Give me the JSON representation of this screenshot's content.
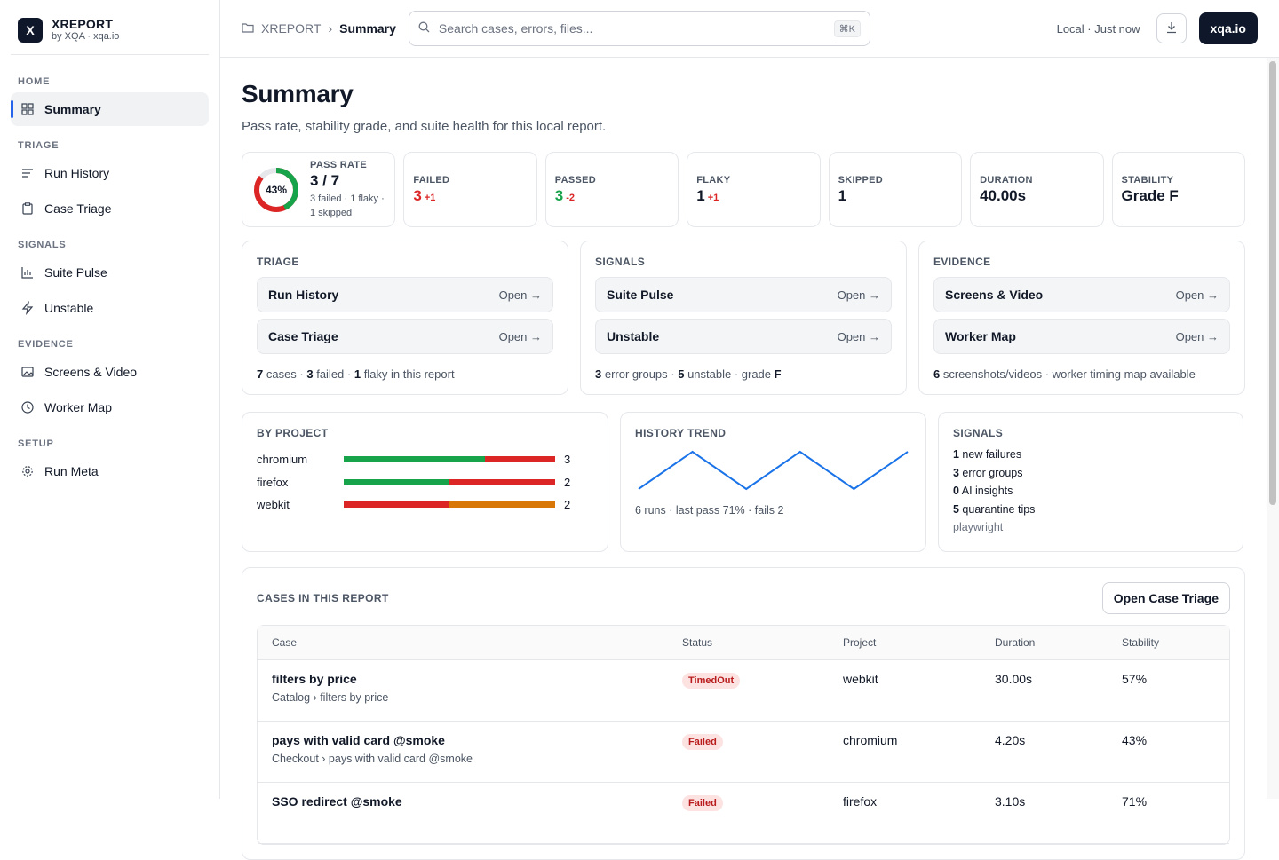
{
  "brand": {
    "logo_letter": "X",
    "name": "XREPORT",
    "sub": "by XQA · xqa.io"
  },
  "sidebar": {
    "sections": [
      {
        "title": "HOME",
        "items": [
          {
            "label": "Summary",
            "icon": "grid-icon",
            "active": true
          }
        ]
      },
      {
        "title": "TRIAGE",
        "items": [
          {
            "label": "Run History",
            "icon": "list-icon"
          },
          {
            "label": "Case Triage",
            "icon": "clipboard-icon"
          }
        ]
      },
      {
        "title": "SIGNALS",
        "items": [
          {
            "label": "Suite Pulse",
            "icon": "bar-chart-icon"
          },
          {
            "label": "Unstable",
            "icon": "lightning-icon"
          }
        ]
      },
      {
        "title": "EVIDENCE",
        "items": [
          {
            "label": "Screens & Video",
            "icon": "image-icon"
          },
          {
            "label": "Worker Map",
            "icon": "clock-icon"
          }
        ]
      },
      {
        "title": "SETUP",
        "items": [
          {
            "label": "Run Meta",
            "icon": "settings-icon"
          }
        ]
      }
    ]
  },
  "topbar": {
    "crumb_root": "XREPORT",
    "crumb_sep": "›",
    "crumb_current": "Summary",
    "search_placeholder": "Search cases, errors, files...",
    "search_shortcut": "⌘K",
    "status": "Local · Just now",
    "brand_button": "xqa.io"
  },
  "page": {
    "title": "Summary",
    "subtitle": "Pass rate, stability grade, and suite health for this local report."
  },
  "stats": {
    "pass_rate": {
      "label": "PASS RATE",
      "percent_text": "43%",
      "percent": 43,
      "value": "3 / 7",
      "detail": "3 failed · 1 flaky · 1 skipped"
    },
    "cards": [
      {
        "label": "FAILED",
        "value": "3",
        "delta": "+1",
        "value_color": "#dc2626",
        "delta_color": "#dc2626"
      },
      {
        "label": "PASSED",
        "value": "3",
        "delta": "-2",
        "value_color": "#16a34a",
        "delta_color": "#dc2626"
      },
      {
        "label": "FLAKY",
        "value": "1",
        "delta": "+1",
        "value_color": "#111827",
        "delta_color": "#dc2626"
      },
      {
        "label": "SKIPPED",
        "value": "1",
        "delta": "",
        "value_color": "#111827",
        "delta_color": "#111827"
      },
      {
        "label": "DURATION",
        "value": "40.00s",
        "delta": "",
        "value_color": "#111827",
        "delta_color": "#111827"
      },
      {
        "label": "STABILITY",
        "value": "Grade F",
        "delta": "",
        "value_color": "#111827",
        "delta_color": "#111827"
      }
    ]
  },
  "groups": [
    {
      "title": "TRIAGE",
      "links": [
        {
          "label": "Run History",
          "open": "Open →"
        },
        {
          "label": "Case Triage",
          "open": "Open →"
        }
      ],
      "foot": [
        {
          "b": "7",
          "t": " cases · "
        },
        {
          "b": "3",
          "t": " failed · "
        },
        {
          "b": "1",
          "t": " flaky in this report"
        }
      ]
    },
    {
      "title": "SIGNALS",
      "links": [
        {
          "label": "Suite Pulse",
          "open": "Open →"
        },
        {
          "label": "Unstable",
          "open": "Open →"
        }
      ],
      "foot": [
        {
          "b": "3",
          "t": " error groups · "
        },
        {
          "b": "5",
          "t": " unstable · grade "
        },
        {
          "b": "F",
          "t": ""
        }
      ]
    },
    {
      "title": "EVIDENCE",
      "links": [
        {
          "label": "Screens & Video",
          "open": "Open →"
        },
        {
          "label": "Worker Map",
          "open": "Open →"
        }
      ],
      "foot": [
        {
          "b": "6",
          "t": " screenshots/videos · worker timing map available"
        }
      ]
    }
  ],
  "by_project": {
    "title": "BY PROJECT",
    "rows": [
      {
        "name": "chromium",
        "count": "3",
        "segments": [
          {
            "fraction": 0.67,
            "color": "#16a34a"
          },
          {
            "fraction": 0.33,
            "color": "#dc2626"
          }
        ]
      },
      {
        "name": "firefox",
        "count": "2",
        "segments": [
          {
            "fraction": 0.5,
            "color": "#16a34a"
          },
          {
            "fraction": 0.5,
            "color": "#dc2626"
          }
        ]
      },
      {
        "name": "webkit",
        "count": "2",
        "segments": [
          {
            "fraction": 0.5,
            "color": "#dc2626"
          },
          {
            "fraction": 0.5,
            "color": "#d97706"
          }
        ]
      }
    ]
  },
  "history": {
    "title": "HISTORY TREND",
    "caption": "6 runs · last pass 71% · fails 2",
    "line_color": "#1a73e8"
  },
  "chart_data": {
    "type": "line",
    "title": "",
    "x": [
      1,
      2,
      3,
      4,
      5,
      6
    ],
    "series": [
      {
        "values": [
          0,
          1,
          0,
          1,
          0,
          1
        ]
      }
    ],
    "xlabel": "",
    "ylabel": "",
    "grid": false
  },
  "signals_card": {
    "title": "SIGNALS",
    "lines": [
      {
        "b": "1",
        "t": " new failures"
      },
      {
        "b": "3",
        "t": " error groups"
      },
      {
        "b": "0",
        "t": " AI insights"
      },
      {
        "b": "5",
        "t": " quarantine tips"
      }
    ],
    "footer": "playwright"
  },
  "cases": {
    "title": "CASES IN THIS REPORT",
    "button": "Open Case Triage",
    "columns": [
      "Case",
      "Status",
      "Project",
      "Duration",
      "Stability"
    ],
    "rows": [
      {
        "title": "filters by price",
        "path": "Catalog › filters by price",
        "status": "TimedOut",
        "project": "webkit",
        "duration": "30.00s",
        "stability": "57%"
      },
      {
        "title": "pays with valid card @smoke",
        "path": "Checkout › pays with valid card @smoke",
        "status": "Failed",
        "project": "chromium",
        "duration": "4.20s",
        "stability": "43%"
      },
      {
        "title": "SSO redirect @smoke",
        "path": "",
        "status": "Failed",
        "project": "firefox",
        "duration": "3.10s",
        "stability": "71%"
      }
    ]
  }
}
